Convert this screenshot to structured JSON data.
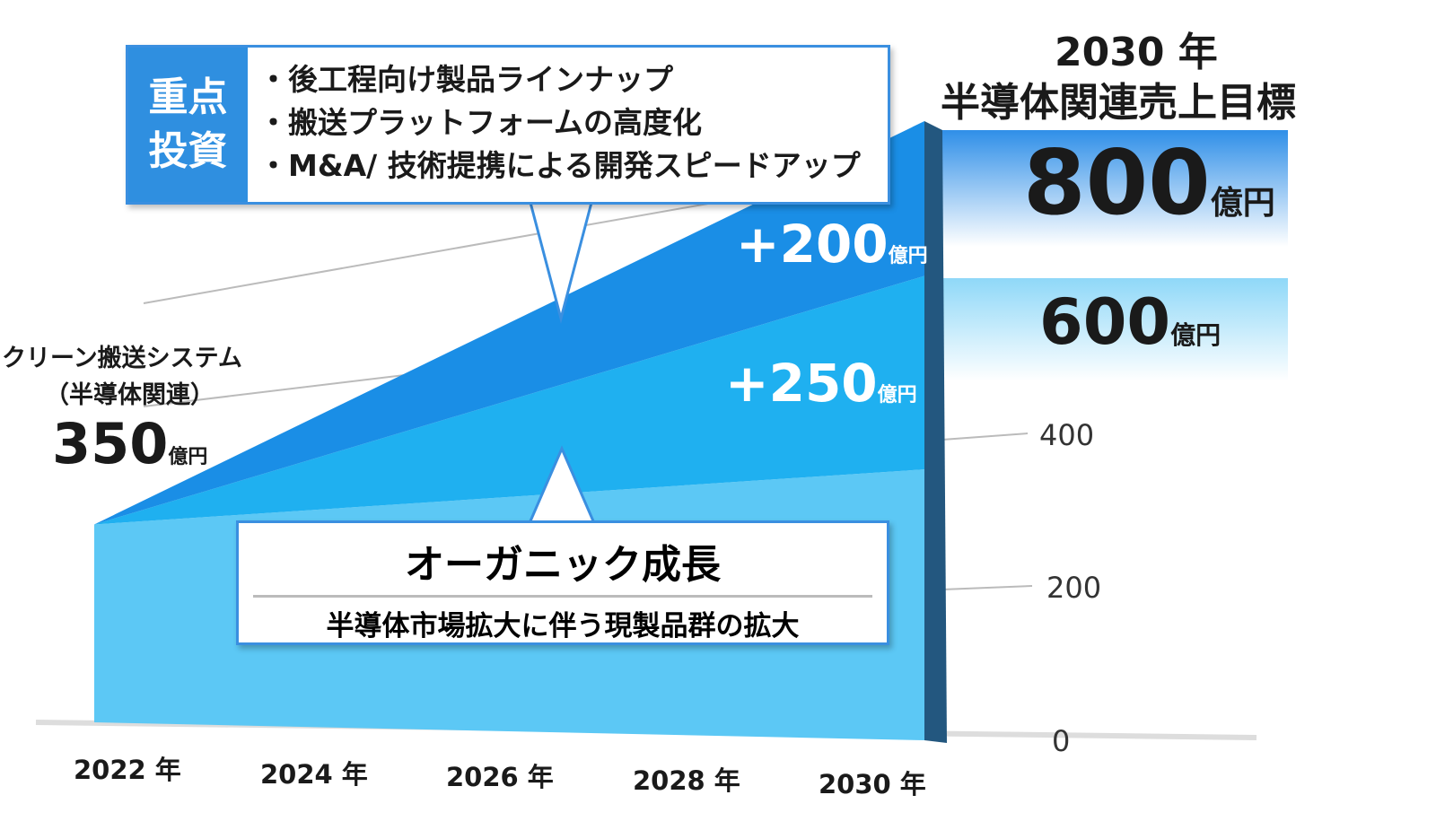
{
  "chart_data": {
    "type": "area",
    "title": "2030 年 半導体関連売上目標",
    "categories": [
      "2022 年",
      "2024 年",
      "2026 年",
      "2028 年",
      "2030 年"
    ],
    "x": [
      2022,
      2030
    ],
    "series": [
      {
        "name": "オーガニック成長",
        "values": [
          350,
          350
        ],
        "color": "#5cc8f5"
      },
      {
        "name": "+250",
        "values": [
          0,
          250
        ],
        "color": "#1fb0f0"
      },
      {
        "name": "+200",
        "values": [
          0,
          200
        ],
        "color": "#1a8ee6"
      }
    ],
    "ylim": [
      0,
      800
    ],
    "yticks": [
      "0",
      "200",
      "400"
    ],
    "ytick_values": [
      0,
      200,
      400
    ],
    "legend": "none"
  },
  "labels": {
    "title_line1": "2030 年",
    "title_line2": "半導体関連売上目標",
    "target_800": "800",
    "target_600": "600",
    "unit": "億円",
    "plus200": "+200",
    "plus250": "+250",
    "left_line1": "クリーン搬送システム",
    "left_line2": "（半導体関連）",
    "left_value": "350"
  },
  "investment": {
    "tag_line1": "重点",
    "tag_line2": "投資",
    "items": [
      "・後工程向け製品ラインナップ",
      "・搬送プラットフォームの高度化",
      "・M&A/ 技術提携による開発スピードアップ"
    ]
  },
  "organic": {
    "title": "オーガニック成長",
    "subtitle": "半導体市場拡大に伴う現製品群の拡大"
  }
}
